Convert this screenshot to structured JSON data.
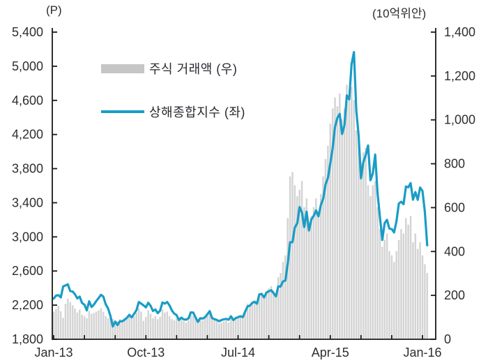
{
  "units": {
    "left": "(P)",
    "right": "(10억위안)"
  },
  "legend": [
    {
      "type": "bar",
      "color": "#c6c6c6",
      "label": "주식 거래액 (우)"
    },
    {
      "type": "line",
      "color": "#1a9cc6",
      "label": "상해종합지수 (좌)"
    }
  ],
  "chart_data": {
    "type": "combo",
    "title": "",
    "grid": false,
    "legend_position": "top-left-inside",
    "x_axis": {
      "unit": "weeks from Jan-13",
      "tick_labels": [
        "Jan-13",
        "Oct-13",
        "Jul-14",
        "Apr-15",
        "Jan-16"
      ],
      "tick_weeks": [
        0,
        39,
        78,
        117,
        156
      ],
      "minor_tick_weeks": [
        0,
        13,
        26,
        39,
        52,
        65,
        78,
        91,
        104,
        117,
        130,
        143,
        156
      ]
    },
    "left_axis": {
      "label": "(P)",
      "min": 1800,
      "max": 5400,
      "step": 400,
      "ticks": [
        "5,400",
        "5,000",
        "4,600",
        "4,200",
        "3,800",
        "3,400",
        "3,000",
        "2,600",
        "2,200",
        "1,800"
      ]
    },
    "right_axis": {
      "label": "(10억위안)",
      "min": 0,
      "max": 1400,
      "step": 200,
      "ticks": [
        "1,400",
        "1,200",
        "1,000",
        "800",
        "600",
        "400",
        "200",
        "0"
      ]
    },
    "series": [
      {
        "name": "주식 거래액 (우)",
        "type": "bar",
        "axis": "right",
        "color": "#d4d4d4",
        "values": [
          125,
          138,
          152,
          128,
          98,
          162,
          185,
          170,
          155,
          140,
          122,
          135,
          112,
          105,
          96,
          130,
          116,
          120,
          126,
          132,
          142,
          125,
          106,
          96,
          112,
          92,
          86,
          82,
          92,
          86,
          96,
          102,
          112,
          96,
          106,
          122,
          142,
          126,
          84,
          102,
          132,
          116,
          96,
          106,
          92,
          102,
          136,
          122,
          126,
          106,
          92,
          86,
          96,
          86,
          92,
          82,
          76,
          86,
          112,
          106,
          96,
          82,
          92,
          86,
          96,
          106,
          116,
          92,
          86,
          82,
          72,
          76,
          82,
          86,
          76,
          96,
          86,
          92,
          102,
          106,
          102,
          132,
          162,
          156,
          172,
          176,
          162,
          202,
          212,
          192,
          216,
          232,
          242,
          222,
          202,
          282,
          302,
          352,
          382,
          552,
          742,
          762,
          702,
          652,
          682,
          722,
          602,
          642,
          522,
          562,
          602,
          642,
          582,
          662,
          742,
          822,
          882,
          982,
          1052,
          1102,
          1062,
          1120,
          1002,
          1052,
          1160,
          1102,
          1150,
          1090,
          952,
          902,
          802,
          852,
          872,
          702,
          652,
          702,
          722,
          602,
          502,
          422,
          452,
          482,
          402,
          382,
          352,
          402,
          452,
          502,
          482,
          552,
          522,
          562,
          442,
          482,
          412,
          442,
          382,
          342,
          302
        ]
      },
      {
        "name": "상해종합지수 (좌)",
        "type": "line",
        "axis": "left",
        "color": "#1a9cc6",
        "values": [
          2276,
          2311,
          2317,
          2291,
          2419,
          2432,
          2444,
          2365,
          2360,
          2328,
          2279,
          2300,
          2225,
          2206,
          2139,
          2245,
          2178,
          2205,
          2247,
          2282,
          2321,
          2301,
          2211,
          2162,
          2074,
          1950,
          2007,
          1966,
          2011,
          2010,
          2029,
          2052,
          2086,
          2057,
          2098,
          2140,
          2236,
          2218,
          2198,
          2174,
          2228,
          2193,
          2132,
          2149,
          2106,
          2135,
          2231,
          2217,
          2237,
          2196,
          2137,
          2101,
          2083,
          2026,
          2054,
          2033,
          2030,
          2044,
          2115,
          2113,
          2056,
          2004,
          2047,
          2042,
          2058,
          2093,
          2130,
          2048,
          2036,
          2027,
          2011,
          2026,
          2034,
          2039,
          2029,
          2070,
          2026,
          2048,
          2059,
          2070,
          2059,
          2126,
          2185,
          2194,
          2226,
          2240,
          2217,
          2326,
          2331,
          2290,
          2347,
          2363,
          2374,
          2341,
          2302,
          2420,
          2418,
          2478,
          2487,
          2683,
          2937,
          2938,
          3109,
          3157,
          3350,
          3286,
          3116,
          3296,
          3075,
          3204,
          3246,
          3310,
          3241,
          3372,
          3449,
          3617,
          3691,
          3863,
          4034,
          4287,
          4394,
          4441,
          4206,
          4308,
          4658,
          4612,
          5023,
          5166,
          4478,
          4192,
          3687,
          3877,
          3957,
          4071,
          3664,
          3744,
          3965,
          3508,
          3232,
          2964,
          3160,
          3200,
          3098,
          3092,
          3053,
          3183,
          3391,
          3412,
          3383,
          3590,
          3581,
          3630,
          3436,
          3525,
          3435,
          3579,
          3539,
          3296,
          2901
        ]
      }
    ]
  }
}
